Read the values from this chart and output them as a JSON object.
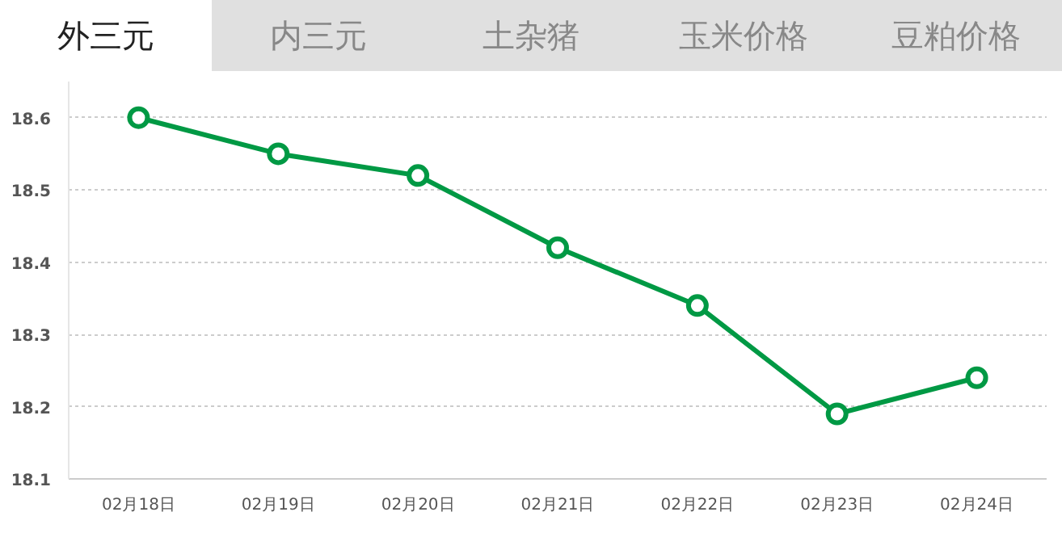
{
  "chart_data": {
    "type": "line",
    "title": "外三元",
    "annotations": [
      "内三元",
      "土杂猪",
      "玉米价格",
      "豆粕价格"
    ],
    "categories": [
      "02月18日",
      "02月19日",
      "02月20日",
      "02月21日",
      "02月22日",
      "02月23日",
      "02月24日"
    ],
    "series": [
      {
        "color": "#009944",
        "values": [
          18.6,
          18.55,
          18.52,
          18.42,
          18.34,
          18.19,
          18.24
        ]
      }
    ],
    "ylim": [
      18.1,
      18.65
    ],
    "yticks": [
      18.1,
      18.2,
      18.3,
      18.4,
      18.5,
      18.6
    ],
    "grid": "y",
    "marker": "circle",
    "line_style": "solid"
  }
}
